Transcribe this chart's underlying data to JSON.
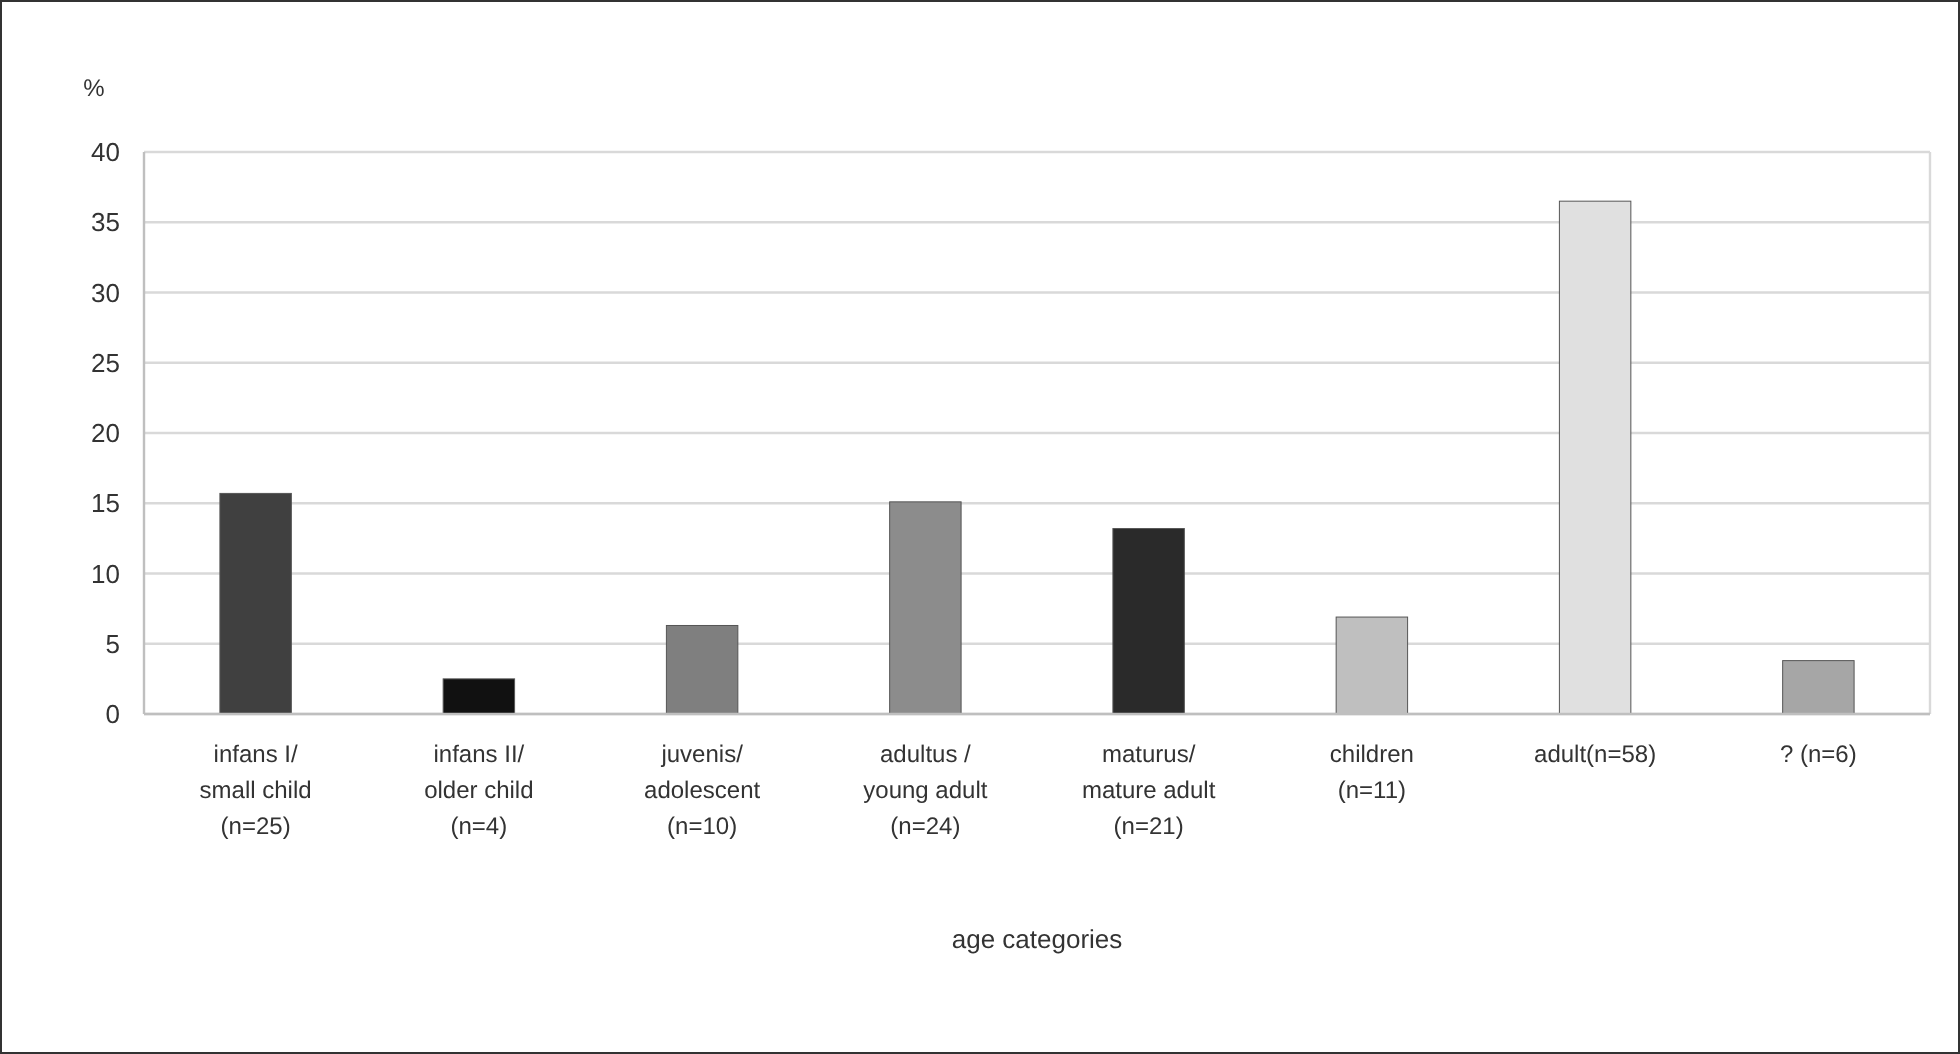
{
  "chart_data": {
    "type": "bar",
    "ylabel": "%",
    "xlabel": "age categories",
    "categories": [
      "infans I/\nsmall child\n(n=25)",
      "infans II/\nolder child\n(n=4)",
      "juvenis/\nadolescent\n(n=10)",
      "adultus /\nyoung adult\n(n=24)",
      "maturus/\nmature adult\n(n=21)",
      "children\n(n=11)",
      "adult(n=58)",
      "? (n=6)"
    ],
    "values": [
      15.7,
      2.5,
      6.3,
      15.1,
      13.2,
      6.9,
      36.5,
      3.8
    ],
    "colors": [
      "#404040",
      "#111111",
      "#7f7f7f",
      "#8c8c8c",
      "#2a2a2a",
      "#bfbfbf",
      "#e0e0e0",
      "#a6a6a6"
    ],
    "ylim": [
      0,
      40
    ],
    "yticks": [
      0,
      5,
      10,
      15,
      20,
      25,
      30,
      35,
      40
    ],
    "grid": "y"
  }
}
